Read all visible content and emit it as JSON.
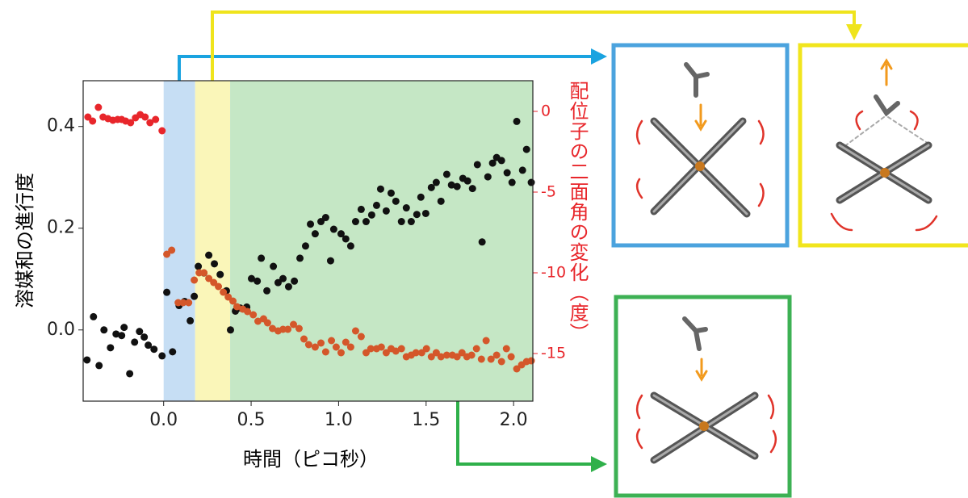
{
  "chart_data": {
    "type": "scatter",
    "xlabel": "時間（ピコ秒）",
    "ylabel": "溶媒和の進行度",
    "y2label": "配位子の二面角の変化（度）",
    "xlim": [
      -0.46,
      2.11
    ],
    "ylim": [
      -0.14,
      0.49
    ],
    "y2lim": [
      -17.95,
      1.9
    ],
    "xticks": [
      {
        "value": 0,
        "label": "0.0"
      },
      0.5,
      {
        "value": 1,
        "label": "1.0"
      },
      1.5,
      {
        "value": 2,
        "label": "2.0"
      }
    ],
    "yticks": [
      {
        "value": 0,
        "label": "0.0"
      },
      0.2,
      0.4
    ],
    "y2ticks": [
      0,
      -5,
      -10,
      -15
    ],
    "spans": [
      {
        "from": 0,
        "to": 0.18,
        "color": "#c6def4"
      },
      {
        "from": 0.18,
        "to": 0.38,
        "color": "#faf6b9"
      },
      {
        "from": 0.38,
        "to": 2.11,
        "color": "#c5e7c5"
      }
    ],
    "series": [
      {
        "color": "#111111",
        "axis": "y",
        "x": [
          -0.438,
          -0.401,
          -0.369,
          -0.341,
          -0.304,
          -0.272,
          -0.24,
          -0.226,
          -0.194,
          -0.166,
          -0.138,
          -0.111,
          -0.088,
          -0.055,
          -0.009,
          0.018,
          0.051,
          0.088,
          0.12,
          0.152,
          0.175,
          0.198,
          0.23,
          0.258,
          0.29,
          0.323,
          0.359,
          0.382,
          0.41,
          0.438,
          0.475,
          0.502,
          0.535,
          0.558,
          0.59,
          0.627,
          0.654,
          0.682,
          0.714,
          0.747,
          0.779,
          0.811,
          0.839,
          0.866,
          0.899,
          0.926,
          0.954,
          0.972,
          1.014,
          1.041,
          1.069,
          1.097,
          1.129,
          1.157,
          1.189,
          1.217,
          1.24,
          1.272,
          1.3,
          1.327,
          1.359,
          1.387,
          1.415,
          1.447,
          1.47,
          1.498,
          1.53,
          1.558,
          1.585,
          1.618,
          1.645,
          1.677,
          1.71,
          1.737,
          1.765,
          1.793,
          1.82,
          1.853,
          1.88,
          1.903,
          1.931,
          1.963,
          1.991,
          2.018,
          2.051,
          2.074,
          2.101
        ],
        "values": [
          -0.059,
          0.026,
          -0.07,
          0,
          -0.035,
          -0.008,
          -0.011,
          0.005,
          -0.086,
          -0.024,
          -0.003,
          -0.014,
          -0.03,
          -0.038,
          -0.051,
          0.074,
          -0.043,
          0.048,
          0.056,
          0.018,
          0.066,
          0.125,
          0.112,
          0.147,
          0.13,
          0.109,
          0.077,
          0,
          0.037,
          0.043,
          0.045,
          0.101,
          0.096,
          0.141,
          0.077,
          0.125,
          0.093,
          0.101,
          0.085,
          0.096,
          0.141,
          0.165,
          0.208,
          0.189,
          0.213,
          0.221,
          0.136,
          0.198,
          0.189,
          0.179,
          0.165,
          0.213,
          0.237,
          0.213,
          0.226,
          0.245,
          0.277,
          0.234,
          0.269,
          0.253,
          0.213,
          0.24,
          0.213,
          0.227,
          0.261,
          0.229,
          0.28,
          0.29,
          0.253,
          0.306,
          0.285,
          0.282,
          0.298,
          0.293,
          0.278,
          0.325,
          0.173,
          0.301,
          0.328,
          0.339,
          0.333,
          0.309,
          0.29,
          0.41,
          0.314,
          0.355,
          0.29
        ]
      },
      {
        "color": "#e8262b",
        "axis": "y2",
        "x": [
          -0.433,
          -0.406,
          -0.373,
          -0.346,
          -0.318,
          -0.29,
          -0.263,
          -0.24,
          -0.217,
          -0.189,
          -0.161,
          -0.134,
          -0.106,
          -0.078,
          -0.046,
          -0.009
        ],
        "values": [
          -0.35,
          -0.6,
          0.25,
          -0.35,
          -0.45,
          -0.55,
          -0.5,
          -0.5,
          -0.6,
          -0.7,
          -0.4,
          -0.2,
          -0.35,
          -0.7,
          -0.5,
          -1.2
        ]
      },
      {
        "color": "#d4572a",
        "axis": "y2",
        "x": [
          0.018,
          0.046,
          0.083,
          0.111,
          0.143,
          0.175,
          0.203,
          0.23,
          0.258,
          0.286,
          0.313,
          0.341,
          0.369,
          0.396,
          0.419,
          0.452,
          0.479,
          0.512,
          0.539,
          0.571,
          0.594,
          0.622,
          0.654,
          0.682,
          0.71,
          0.742,
          0.774,
          0.802,
          0.829,
          0.866,
          0.899,
          0.926,
          0.959,
          0.986,
          1.014,
          1.041,
          1.069,
          1.097,
          1.129,
          1.157,
          1.184,
          1.217,
          1.244,
          1.272,
          1.3,
          1.327,
          1.359,
          1.387,
          1.415,
          1.442,
          1.475,
          1.502,
          1.53,
          1.558,
          1.585,
          1.618,
          1.65,
          1.677,
          1.705,
          1.733,
          1.76,
          1.788,
          1.816,
          1.843,
          1.871,
          1.903,
          1.931,
          1.959,
          1.986,
          2.018,
          2.046,
          2.074,
          2.101
        ],
        "values": [
          -8.85,
          -8.6,
          -11.85,
          -11.85,
          -11.85,
          -10.45,
          -10,
          -10,
          -10.35,
          -10.6,
          -10.85,
          -11.2,
          -11.5,
          -11.75,
          -12.1,
          -12.25,
          -12.4,
          -12.6,
          -13,
          -12.85,
          -13.1,
          -13.45,
          -13.6,
          -13.5,
          -13.5,
          -13.2,
          -13.45,
          -14.1,
          -14.45,
          -14.6,
          -14.35,
          -14.9,
          -14.2,
          -14.6,
          -14.95,
          -14.3,
          -14.6,
          -13.6,
          -13.95,
          -14.95,
          -14.7,
          -14.7,
          -14.6,
          -14.95,
          -14.7,
          -14.85,
          -14.7,
          -15.2,
          -15.1,
          -14.95,
          -14.95,
          -14.7,
          -15.2,
          -14.95,
          -15.2,
          -15.1,
          -15.1,
          -15.2,
          -14.95,
          -15.2,
          -15.1,
          -14.7,
          -15.35,
          -14.2,
          -15.35,
          -15.1,
          -15.5,
          -14.7,
          -15.2,
          -15.95,
          -15.7,
          -15.5,
          -15.45
        ]
      }
    ]
  }
}
